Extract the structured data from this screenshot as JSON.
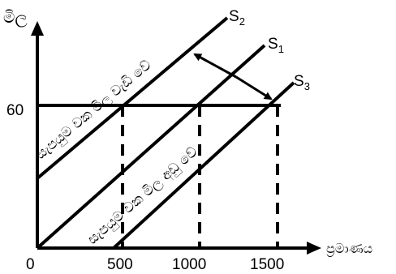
{
  "axes": {
    "y_label": "මිල",
    "x_label": "ප්‍රමාණය",
    "origin": "0",
    "y_tick": "60",
    "x_ticks": [
      "500",
      "1000",
      "1500"
    ]
  },
  "curves": [
    {
      "name": "S",
      "sub": "2"
    },
    {
      "name": "S",
      "sub": "1"
    },
    {
      "name": "S",
      "sub": "3"
    }
  ],
  "annotations": {
    "upper": "සැපයුම වක මිල වැඩි වේ",
    "lower": "සැපයුම වක මිල අඩු වේ"
  }
}
